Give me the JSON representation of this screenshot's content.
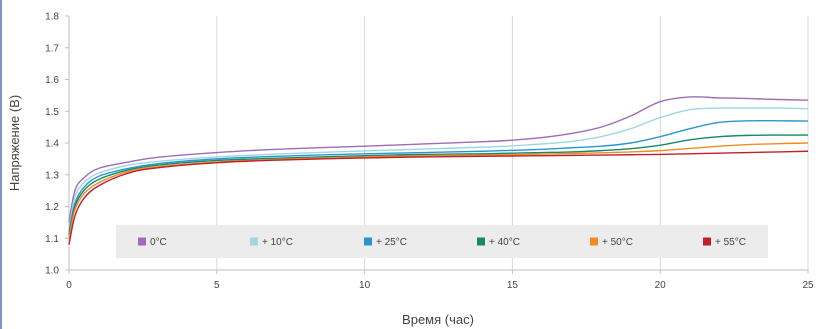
{
  "chart_data": {
    "type": "line",
    "title": "",
    "xlabel": "Время (час)",
    "ylabel": "Напряжение (В)",
    "xlim": [
      0,
      25
    ],
    "ylim": [
      1.0,
      1.8
    ],
    "xticks": [
      0,
      5,
      10,
      15,
      20,
      25
    ],
    "yticks": [
      1.0,
      1.1,
      1.2,
      1.3,
      1.4,
      1.5,
      1.6,
      1.7,
      1.8
    ],
    "ytick_labels": [
      "1.0",
      "1.1",
      "1.2",
      "1.3",
      "1.4",
      "1.5",
      "1.6",
      "1.7",
      "1.8"
    ],
    "grid": "vertical",
    "legend_position": "bottom-inside",
    "x": [
      0,
      0.2,
      0.5,
      1,
      2,
      3,
      5,
      7,
      10,
      12,
      14,
      15,
      16,
      17,
      18,
      19,
      20,
      21,
      22,
      23,
      24,
      25
    ],
    "series": [
      {
        "name": "0°C",
        "color": "#9e6cb8",
        "values": [
          1.15,
          1.25,
          1.29,
          1.32,
          1.34,
          1.355,
          1.37,
          1.38,
          1.39,
          1.397,
          1.404,
          1.409,
          1.417,
          1.43,
          1.45,
          1.485,
          1.53,
          1.545,
          1.542,
          1.54,
          1.537,
          1.535
        ]
      },
      {
        "name": "+ 10°C",
        "color": "#9fd6e3",
        "values": [
          1.13,
          1.23,
          1.275,
          1.305,
          1.33,
          1.342,
          1.356,
          1.365,
          1.375,
          1.381,
          1.387,
          1.391,
          1.397,
          1.405,
          1.42,
          1.445,
          1.48,
          1.505,
          1.51,
          1.51,
          1.51,
          1.508
        ]
      },
      {
        "name": "+ 25°C",
        "color": "#2c96cc",
        "values": [
          1.12,
          1.21,
          1.26,
          1.295,
          1.32,
          1.335,
          1.35,
          1.358,
          1.366,
          1.37,
          1.374,
          1.377,
          1.38,
          1.385,
          1.39,
          1.4,
          1.42,
          1.445,
          1.465,
          1.47,
          1.47,
          1.469
        ]
      },
      {
        "name": "+ 40°C",
        "color": "#15896a",
        "values": [
          1.11,
          1.2,
          1.25,
          1.285,
          1.315,
          1.33,
          1.345,
          1.352,
          1.36,
          1.364,
          1.366,
          1.368,
          1.37,
          1.372,
          1.376,
          1.382,
          1.393,
          1.41,
          1.42,
          1.424,
          1.425,
          1.425
        ]
      },
      {
        "name": "+ 50°C",
        "color": "#f18b23",
        "values": [
          1.1,
          1.19,
          1.24,
          1.275,
          1.31,
          1.325,
          1.34,
          1.348,
          1.356,
          1.36,
          1.362,
          1.363,
          1.365,
          1.367,
          1.369,
          1.372,
          1.376,
          1.383,
          1.39,
          1.395,
          1.398,
          1.4
        ]
      },
      {
        "name": "+ 55°C",
        "color": "#c0202c",
        "values": [
          1.08,
          1.17,
          1.225,
          1.265,
          1.305,
          1.322,
          1.338,
          1.346,
          1.353,
          1.356,
          1.358,
          1.359,
          1.36,
          1.361,
          1.362,
          1.363,
          1.364,
          1.366,
          1.368,
          1.37,
          1.372,
          1.374
        ]
      }
    ]
  }
}
